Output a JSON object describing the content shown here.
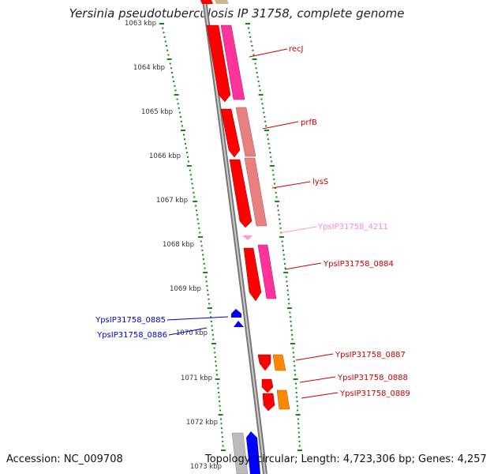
{
  "title": "Yersinia pseudotuberculosis IP 31758, complete genome",
  "footer": {
    "accession": "Accession: NC_009708",
    "topology": "Topology: circular;",
    "length": "Length: 4,723,306 bp;",
    "genes": "Genes: 4,257"
  },
  "ticks": [
    {
      "label": "1063 kbp"
    },
    {
      "label": "1064 kbp"
    },
    {
      "label": "1065 kbp"
    },
    {
      "label": "1066 kbp"
    },
    {
      "label": "1067 kbp"
    },
    {
      "label": "1068 kbp"
    },
    {
      "label": "1069 kbp"
    },
    {
      "label": "1070 kbp"
    },
    {
      "label": "1071 kbp"
    },
    {
      "label": "1072 kbp"
    },
    {
      "label": "1073 kbp"
    }
  ],
  "genes": [
    {
      "label": "recJ",
      "color": "#cc0000"
    },
    {
      "label": "prfB",
      "color": "#cc0000"
    },
    {
      "label": "lysS",
      "color": "#cc0000"
    },
    {
      "label": "YpsIP31758_4211",
      "color": "#ff88cc"
    },
    {
      "label": "YpsIP31758_0884",
      "color": "#cc0000"
    },
    {
      "label": "YpsIP31758_0885",
      "color": "#0000cc"
    },
    {
      "label": "YpsIP31758_0886",
      "color": "#0000cc"
    },
    {
      "label": "YpsIP31758_0887",
      "color": "#cc0000"
    },
    {
      "label": "YpsIP31758_0888",
      "color": "#cc0000"
    },
    {
      "label": "YpsIP31758_0889",
      "color": "#cc0000"
    }
  ],
  "colors": {
    "forward_cds": "#ff0000",
    "reverse_cds": "#0000ff",
    "magenta_track": "#ff3399",
    "salmon_track": "#e88080",
    "orange_track": "#ff8800",
    "gray_track": "#bbbbbb",
    "tan_track": "#c8b88a",
    "backbone": "#888888",
    "tick_marks": "#118811"
  }
}
